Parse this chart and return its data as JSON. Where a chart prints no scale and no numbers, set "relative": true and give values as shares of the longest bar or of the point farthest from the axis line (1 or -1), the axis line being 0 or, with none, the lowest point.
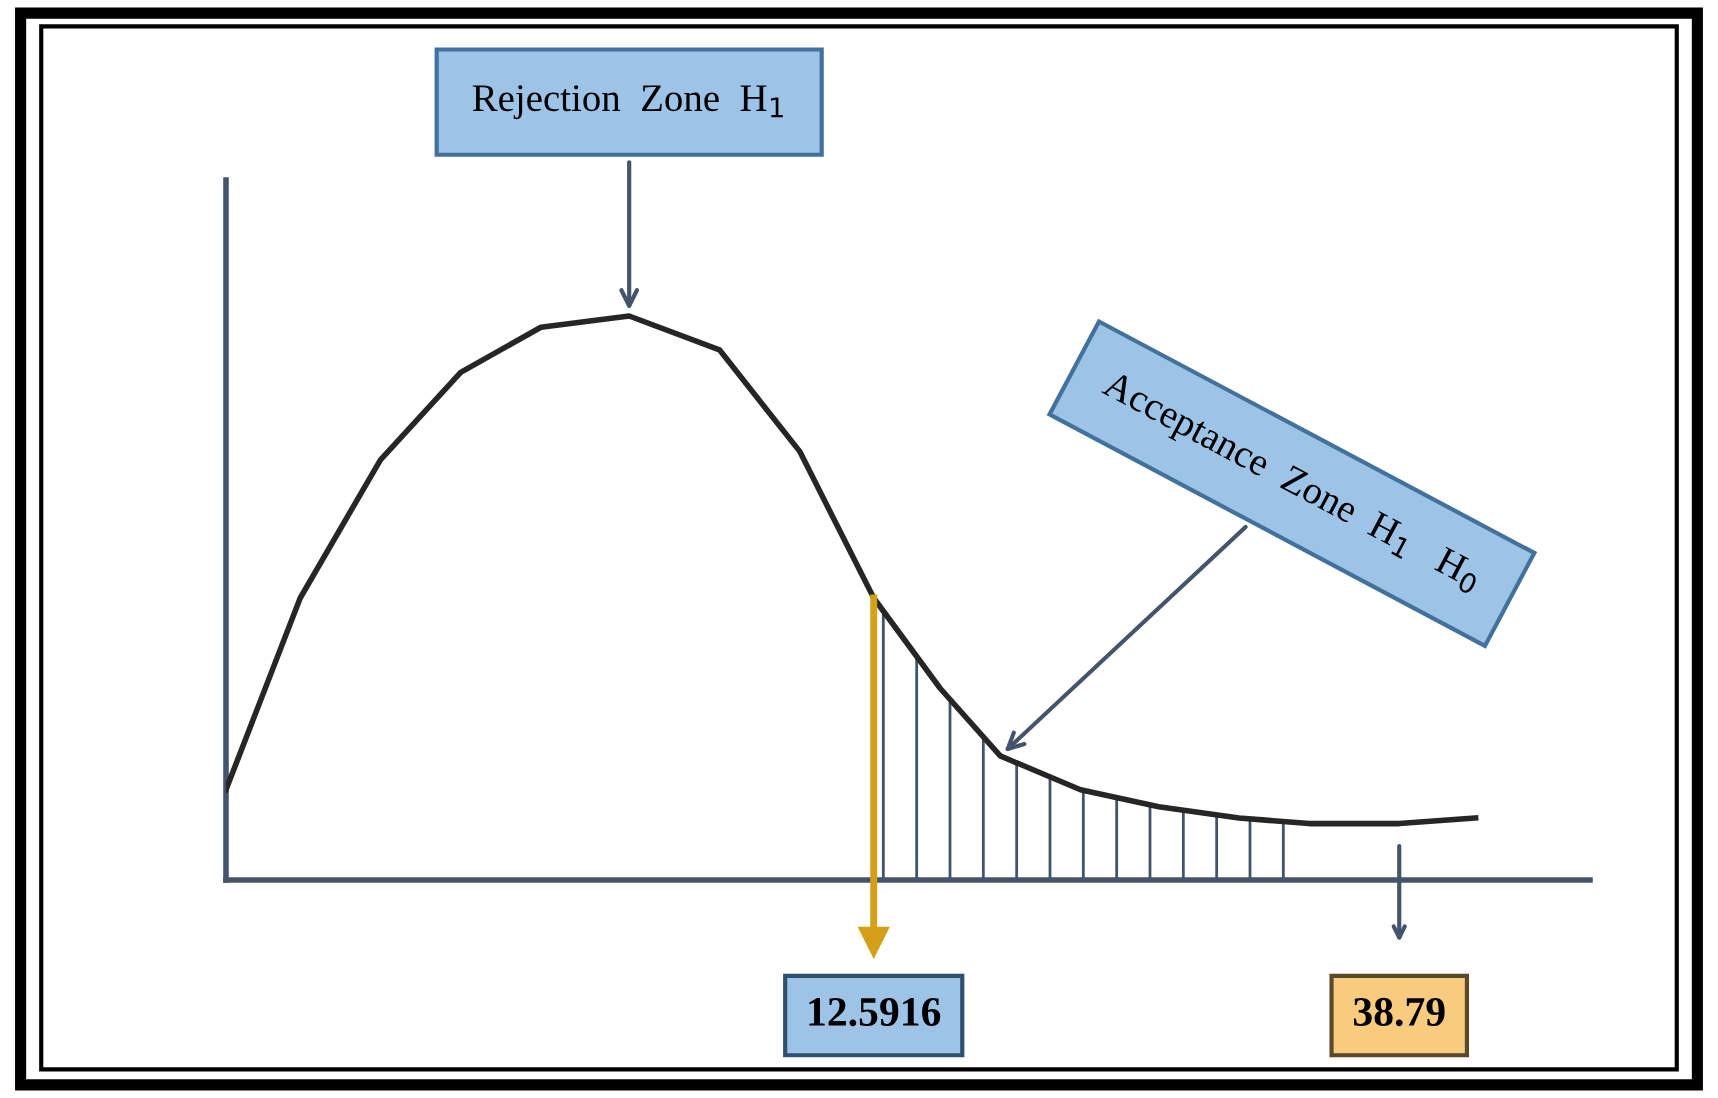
{
  "chart_data": {
    "type": "line",
    "relative": true,
    "xlim": [
      -19.7,
      48.3
    ],
    "xticks": [
      12.5916,
      38.79
    ],
    "tick_labels": "x",
    "annotations": [
      {
        "text": "Rejection  Zone  H$_{1}$",
        "x": 0.4,
        "y": 1.0
      },
      {
        "text": "Acceptance  Zone  H$_{1}$   H$_{0}$",
        "x": 18.9,
        "y": 0.22
      }
    ],
    "ref_lines": [
      {
        "axis": "x",
        "value": 12.5916,
        "color": "#d4a017"
      }
    ],
    "series": [
      {
        "color": "#262626",
        "x": [
          -19.7,
          -16.0,
          -12.0,
          -8.0,
          -4.0,
          0.4,
          4.9,
          8.9,
          12.5916,
          15.9,
          18.9,
          22.9,
          26.8,
          30.8,
          34.3,
          38.79,
          42.6
        ],
        "values": [
          0.16,
          0.5,
          0.745,
          0.9,
          0.98,
          1.0,
          0.94,
          0.76,
          0.5,
          0.34,
          0.22,
          0.16,
          0.13,
          0.11,
          0.1,
          0.1,
          0.11
        ]
      },
      {
        "type": "area",
        "color": "#41546a",
        "x": [
          12.5916,
          15.9,
          18.9,
          22.9,
          26.8,
          30.8,
          34.3
        ],
        "values": [
          0.5,
          0.34,
          0.22,
          0.16,
          0.13,
          0.11,
          0.1
        ]
      }
    ]
  }
}
